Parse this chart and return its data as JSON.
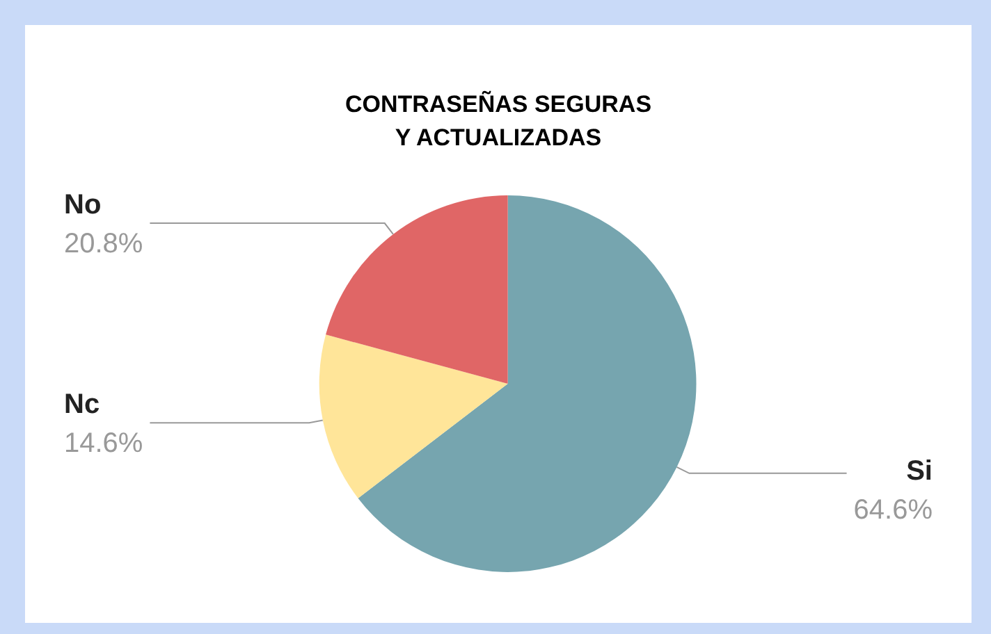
{
  "chart_data": {
    "type": "pie",
    "title": "CONTRASEÑAS SEGURAS\nY ACTUALIZADAS",
    "categories": [
      "Si",
      "Nc",
      "No"
    ],
    "values": [
      64.6,
      14.6,
      20.8
    ],
    "value_labels": [
      "64.6%",
      "14.6%",
      "20.8%"
    ],
    "colors": [
      "#76a5af",
      "#ffe599",
      "#e06666"
    ],
    "legend": false
  }
}
